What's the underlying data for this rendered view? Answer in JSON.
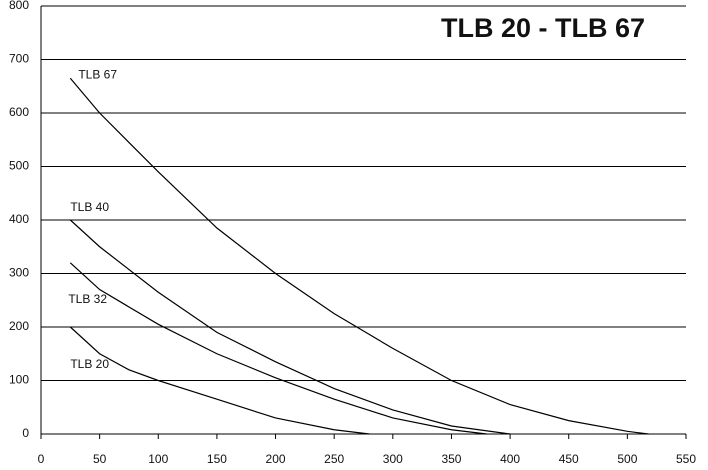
{
  "chart_data": {
    "type": "line",
    "title": "TLB 20 - TLB 67",
    "series": [
      {
        "name": "TLB 67",
        "color": "#000000",
        "x": [
          25,
          50,
          100,
          150,
          200,
          250,
          300,
          350,
          400,
          450,
          500,
          518
        ],
        "values": [
          665,
          600,
          490,
          385,
          300,
          225,
          160,
          100,
          55,
          25,
          5,
          0
        ]
      },
      {
        "name": "TLB 40",
        "color": "#000000",
        "x": [
          25,
          50,
          100,
          150,
          200,
          250,
          300,
          350,
          400
        ],
        "values": [
          400,
          350,
          265,
          190,
          135,
          85,
          45,
          15,
          0
        ]
      },
      {
        "name": "TLB 32",
        "color": "#000000",
        "x": [
          25,
          50,
          100,
          150,
          200,
          250,
          300,
          350,
          380
        ],
        "values": [
          320,
          270,
          205,
          150,
          105,
          65,
          30,
          8,
          0
        ]
      },
      {
        "name": "TLB 20",
        "color": "#000000",
        "x": [
          25,
          50,
          75,
          100,
          150,
          200,
          250,
          280
        ],
        "values": [
          200,
          150,
          120,
          100,
          65,
          30,
          8,
          0
        ]
      }
    ],
    "xlim": [
      0,
      550
    ],
    "xticks": [
      0,
      50,
      100,
      150,
      200,
      250,
      300,
      350,
      400,
      450,
      500,
      550
    ],
    "ylim": [
      0,
      800
    ],
    "yticks": [
      0,
      100,
      200,
      300,
      400,
      500,
      600,
      700,
      800
    ],
    "grid": true
  }
}
